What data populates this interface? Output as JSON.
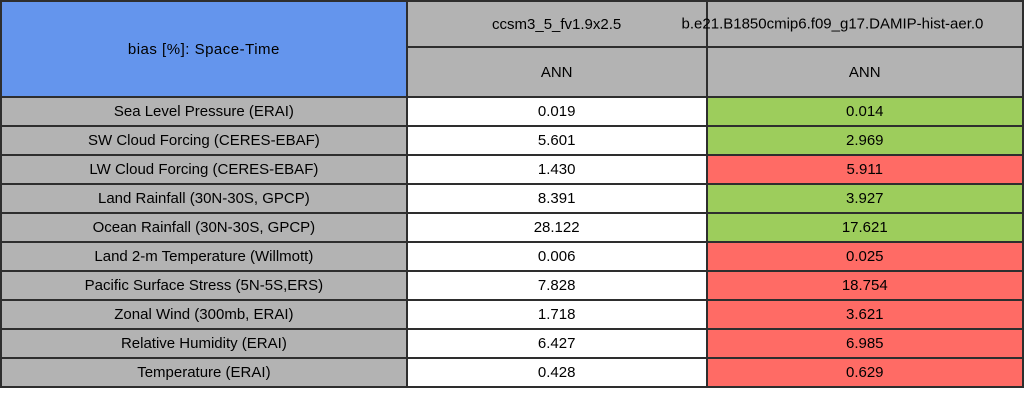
{
  "title": "bias [%]: Space-Time",
  "columns": [
    {
      "model": "ccsm3_5_fv1.9x2.5",
      "season": "ANN"
    },
    {
      "model": "b.e21.B1850cmip6.f09_g17.DAMIP-hist-aer.0",
      "season": "ANN"
    }
  ],
  "rows": [
    {
      "label": "Sea Level Pressure (ERAI)",
      "col1": "0.019",
      "col2": "0.014",
      "status": "better"
    },
    {
      "label": "SW Cloud Forcing (CERES-EBAF)",
      "col1": "5.601",
      "col2": "2.969",
      "status": "better"
    },
    {
      "label": "LW Cloud Forcing (CERES-EBAF)",
      "col1": "1.430",
      "col2": "5.911",
      "status": "worse"
    },
    {
      "label": "Land Rainfall (30N-30S, GPCP)",
      "col1": "8.391",
      "col2": "3.927",
      "status": "better"
    },
    {
      "label": "Ocean Rainfall (30N-30S, GPCP)",
      "col1": "28.122",
      "col2": "17.621",
      "status": "better"
    },
    {
      "label": "Land 2-m Temperature (Willmott)",
      "col1": "0.006",
      "col2": "0.025",
      "status": "worse"
    },
    {
      "label": "Pacific Surface Stress (5N-5S,ERS)",
      "col1": "7.828",
      "col2": "18.754",
      "status": "worse"
    },
    {
      "label": "Zonal Wind (300mb, ERAI)",
      "col1": "1.718",
      "col2": "3.621",
      "status": "worse"
    },
    {
      "label": "Relative Humidity (ERAI)",
      "col1": "6.427",
      "col2": "6.985",
      "status": "worse"
    },
    {
      "label": "Temperature (ERAI)",
      "col1": "0.428",
      "col2": "0.629",
      "status": "worse"
    }
  ],
  "colors": {
    "title_blue": "#6495ED",
    "header_gray": "#B3B3B3",
    "better_green": "#9DCD5C",
    "worse_red": "#FF6B65",
    "border": "#2E2E2E"
  },
  "chart_data": {
    "type": "table",
    "title": "bias [%]: Space-Time",
    "row_labels": [
      "Sea Level Pressure (ERAI)",
      "SW Cloud Forcing (CERES-EBAF)",
      "LW Cloud Forcing (CERES-EBAF)",
      "Land Rainfall (30N-30S, GPCP)",
      "Ocean Rainfall (30N-30S, GPCP)",
      "Land 2-m Temperature (Willmott)",
      "Pacific Surface Stress (5N-5S,ERS)",
      "Zonal Wind (300mb, ERAI)",
      "Relative Humidity (ERAI)",
      "Temperature (ERAI)"
    ],
    "series": [
      {
        "name": "ccsm3_5_fv1.9x2.5",
        "season": "ANN",
        "values": [
          0.019,
          5.601,
          1.43,
          8.391,
          28.122,
          0.006,
          7.828,
          1.718,
          6.427,
          0.428
        ]
      },
      {
        "name": "b.e21.B1850cmip6.f09_g17.DAMIP-hist-aer.0",
        "season": "ANN",
        "values": [
          0.014,
          2.969,
          5.911,
          3.927,
          17.621,
          0.025,
          18.754,
          3.621,
          6.985,
          0.629
        ]
      }
    ],
    "second_series_highlight": [
      "green",
      "green",
      "red",
      "green",
      "green",
      "red",
      "red",
      "red",
      "red",
      "red"
    ],
    "highlight_meaning": {
      "green": "bias improved vs first model",
      "red": "bias worsened vs first model"
    }
  }
}
